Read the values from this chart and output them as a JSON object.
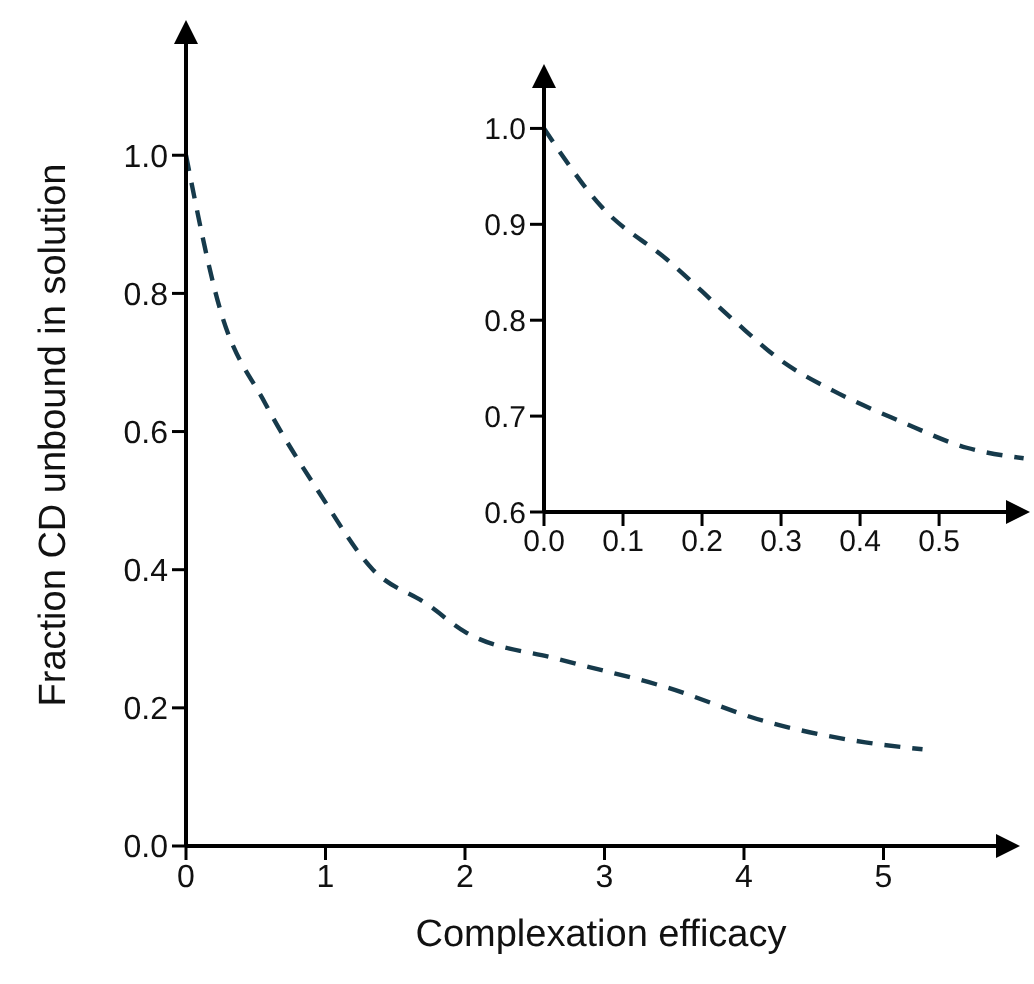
{
  "chart_data": [
    {
      "type": "line",
      "xlabel": "Complexation efficacy",
      "ylabel": "Fraction CD unbound in solution",
      "xlim": [
        0,
        5.95
      ],
      "xticks": [
        0,
        1,
        2,
        3,
        4,
        5
      ],
      "ylim": [
        0,
        1.19
      ],
      "yticks": [
        {
          "value": 0,
          "label": "0.0"
        },
        {
          "value": 0.2,
          "label": "0.2"
        },
        {
          "value": 0.4,
          "label": "0.4"
        },
        {
          "value": 0.6,
          "label": "0.6"
        },
        {
          "value": 0.8,
          "label": "0.8"
        },
        {
          "value": 1,
          "label": "1.0"
        }
      ],
      "grid": false,
      "legend": false,
      "marker": "none",
      "line_style": "dashed",
      "series": [
        {
          "color": "#163a4b",
          "x": [
            0,
            0.24,
            0.57,
            0.96,
            1.34,
            1.73,
            2.0,
            2.68,
            3.44,
            4.16,
            4.87,
            5.28
          ],
          "values": [
            1.0,
            0.78,
            0.64,
            0.51,
            0.4,
            0.35,
            0.31,
            0.27,
            0.23,
            0.18,
            0.15,
            0.14
          ]
        }
      ]
    },
    {
      "type": "line",
      "xlim": [
        0,
        0.61
      ],
      "xticks": [
        {
          "value": 0,
          "label": "0.0"
        },
        {
          "value": 0.1,
          "label": "0.1"
        },
        {
          "value": 0.2,
          "label": "0.2"
        },
        {
          "value": 0.3,
          "label": "0.3"
        },
        {
          "value": 0.4,
          "label": "0.4"
        },
        {
          "value": 0.5,
          "label": "0.5"
        }
      ],
      "ylim": [
        0.6,
        1.063
      ],
      "yticks": [
        {
          "value": 0.6,
          "label": "0.6"
        },
        {
          "value": 0.7,
          "label": "0.7"
        },
        {
          "value": 0.8,
          "label": "0.8"
        },
        {
          "value": 0.9,
          "label": "0.9"
        },
        {
          "value": 1,
          "label": "1.0"
        }
      ],
      "grid": false,
      "legend": false,
      "marker": "none",
      "line_style": "dashed",
      "series": [
        {
          "color": "#163a4b",
          "x": [
            0,
            0.072,
            0.156,
            0.24,
            0.3,
            0.367,
            0.45,
            0.535,
            0.607
          ],
          "values": [
            1.0,
            0.919,
            0.863,
            0.8,
            0.758,
            0.726,
            0.695,
            0.667,
            0.656
          ]
        }
      ]
    }
  ]
}
